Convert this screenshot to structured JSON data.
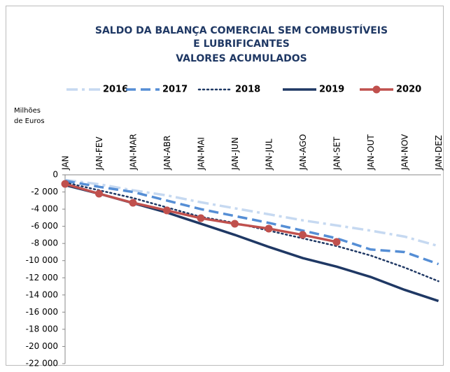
{
  "chart_data": {
    "type": "line",
    "title": [
      "SALDO DA BALANÇA COMERCIAL SEM COMBUSTÍVEIS",
      "E LUBRIFICANTES",
      "VALORES ACUMULADOS"
    ],
    "y_label": [
      "Milhões",
      "de Euros"
    ],
    "categories": [
      "JAN",
      "JAN-FEV",
      "JAN-MAR",
      "JAN-ABR",
      "JAN-MAI",
      "JAN-JUN",
      "JAN-JUL",
      "JAN-AGO",
      "JAN-SET",
      "JAN-OUT",
      "JAN-NOV",
      "JAN-DEZ"
    ],
    "series": [
      {
        "name": "2016",
        "color": "#c6d9f1",
        "style": "dashdot",
        "values": [
          -600,
          -1100,
          -1800,
          -2400,
          -3200,
          -3900,
          -4600,
          -5300,
          -5900,
          -6500,
          -7200,
          -8300
        ]
      },
      {
        "name": "2017",
        "color": "#558ed5",
        "style": "dashed",
        "values": [
          -700,
          -1400,
          -2000,
          -3000,
          -4000,
          -4800,
          -5600,
          -6500,
          -7400,
          -8700,
          -9000,
          -10400
        ]
      },
      {
        "name": "2018",
        "color": "#1f3864",
        "style": "dotted",
        "values": [
          -900,
          -1800,
          -2700,
          -3800,
          -4900,
          -5600,
          -6500,
          -7400,
          -8300,
          -9400,
          -10800,
          -12400
        ]
      },
      {
        "name": "2019",
        "color": "#1f3864",
        "style": "solid",
        "values": [
          -1200,
          -2200,
          -3300,
          -4400,
          -5700,
          -7000,
          -8400,
          -9700,
          -10700,
          -11900,
          -13400,
          -14700
        ]
      },
      {
        "name": "2020",
        "color": "#c0504d",
        "style": "solid",
        "markers": true,
        "values": [
          -1060,
          -2200,
          -3260,
          -4150,
          -5050,
          -5700,
          -6270,
          -7000,
          -7820,
          null,
          null,
          null
        ]
      }
    ],
    "ylim": [
      -22000,
      0
    ],
    "yticks": [
      0,
      {
        "value": -2000,
        "label": "-2 000"
      },
      {
        "value": -4000,
        "label": "-4 000"
      },
      {
        "value": -6000,
        "label": "-6 000"
      },
      {
        "value": -8000,
        "label": "-8 000"
      },
      {
        "value": -10000,
        "label": "-10 000"
      },
      {
        "value": -12000,
        "label": "-12 000"
      },
      {
        "value": -14000,
        "label": "-14 000"
      },
      {
        "value": -16000,
        "label": "-16 000"
      },
      {
        "value": -18000,
        "label": "-18 000"
      },
      {
        "value": -20000,
        "label": "-20 000"
      },
      {
        "value": -22000,
        "label": "-22 000"
      }
    ],
    "grid": false,
    "legend": "top"
  }
}
